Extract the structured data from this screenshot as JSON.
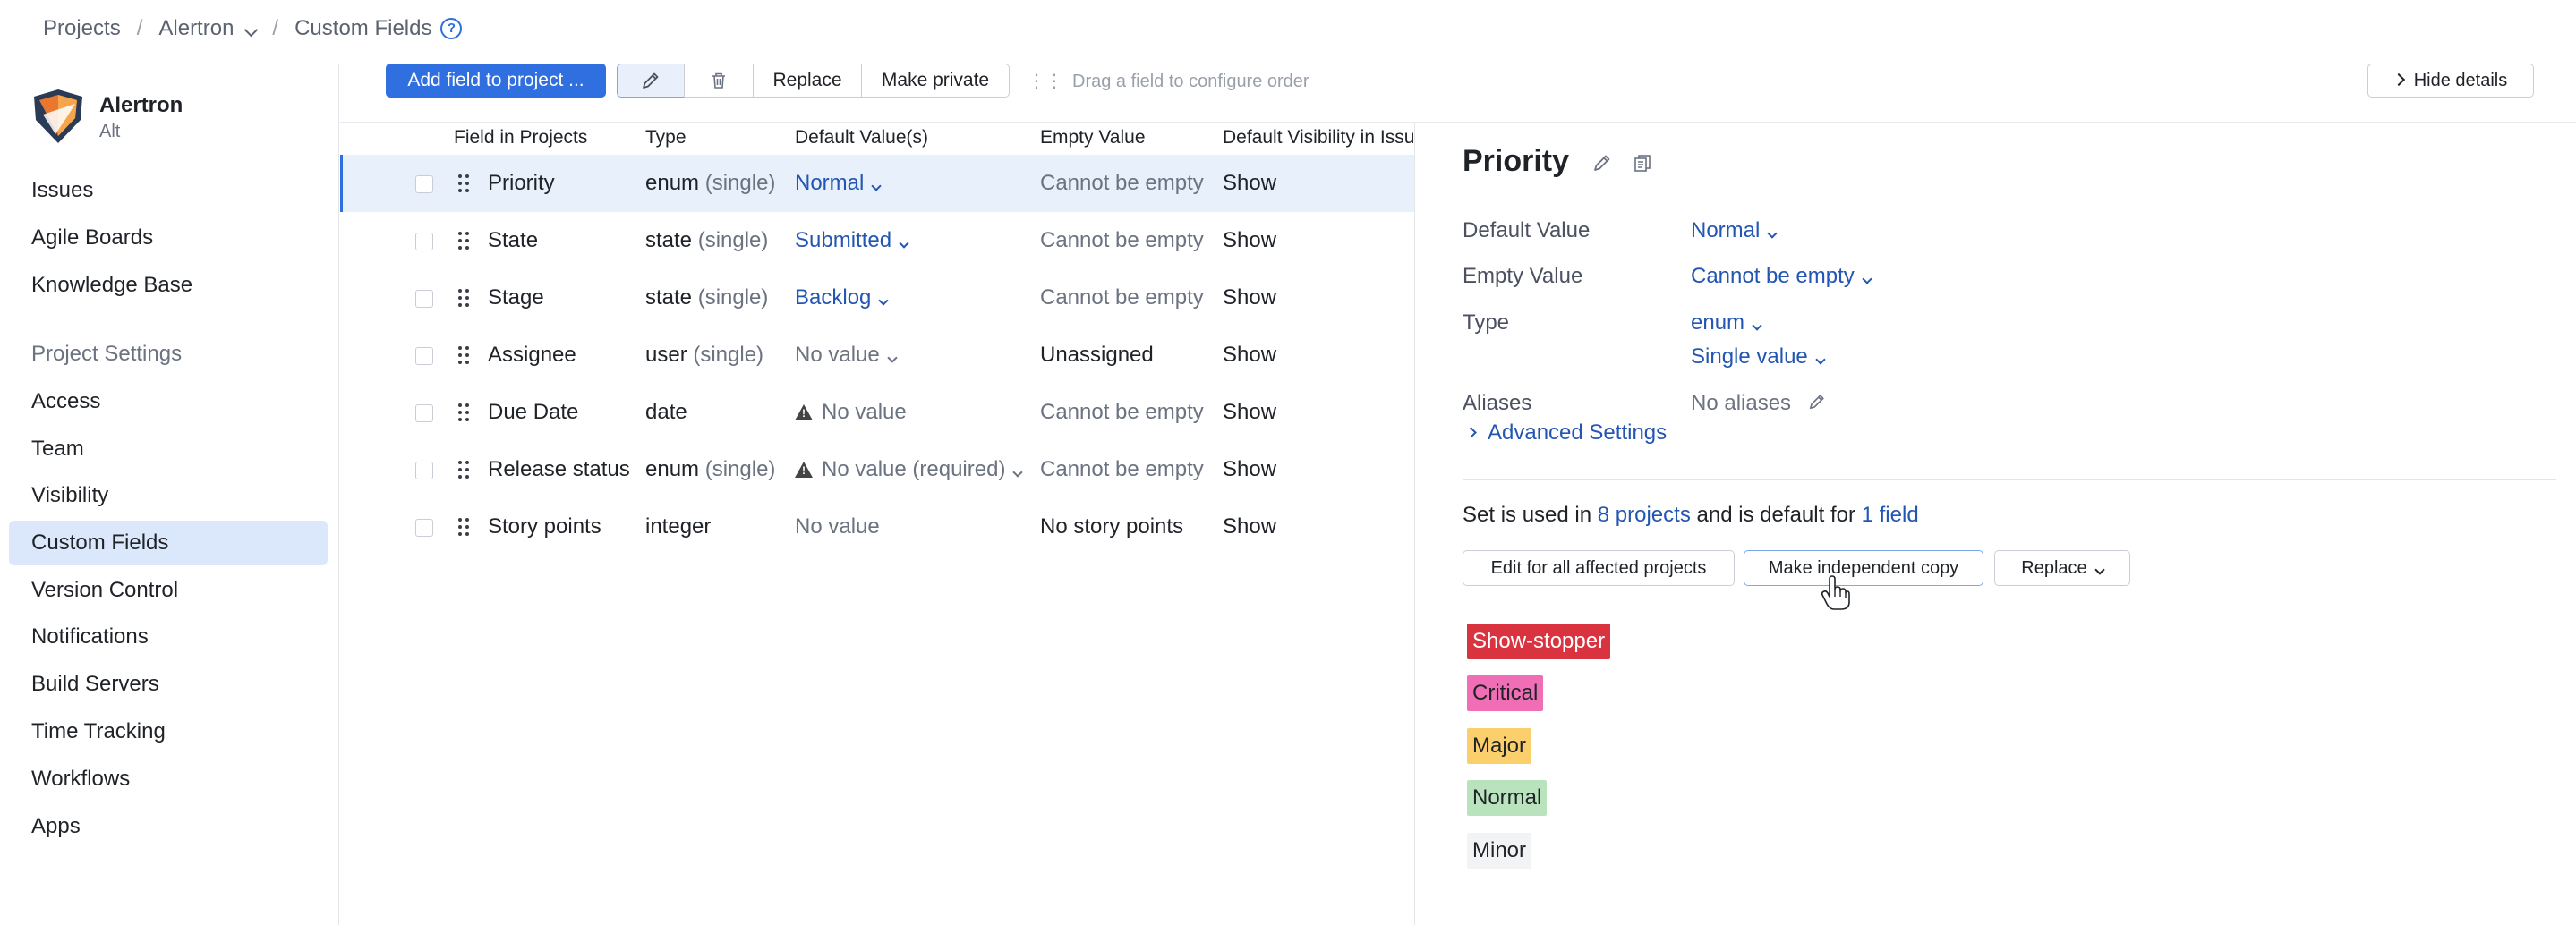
{
  "breadcrumb": {
    "projects": "Projects",
    "project": "Alertron",
    "current": "Custom Fields",
    "help_icon": "?"
  },
  "sidebar": {
    "project_name": "Alertron",
    "project_key": "Alt",
    "items_top": [
      "Issues",
      "Agile Boards",
      "Knowledge Base"
    ],
    "section_title": "Project Settings",
    "items_settings": [
      "Access",
      "Team",
      "Visibility",
      "Custom Fields",
      "Version Control",
      "Notifications",
      "Build Servers",
      "Time Tracking",
      "Workflows",
      "Apps"
    ],
    "active_item": "Custom Fields"
  },
  "toolbar": {
    "add_field": "Add field to project ...",
    "replace": "Replace",
    "make_private": "Make private",
    "drag_hint": "Drag a field to configure order",
    "hide_details": "Hide details"
  },
  "table": {
    "headers": [
      "Field in Projects",
      "Type",
      "Default Value(s)",
      "Empty Value",
      "Default Visibility in Issue"
    ],
    "rows": [
      {
        "name": "Priority",
        "type": "enum",
        "qualifier": "(single)",
        "default": "Normal",
        "empty": "Cannot be empty",
        "visibility": "Show"
      },
      {
        "name": "State",
        "type": "state",
        "qualifier": "(single)",
        "default": "Submitted",
        "empty": "Cannot be empty",
        "visibility": "Show"
      },
      {
        "name": "Stage",
        "type": "state",
        "qualifier": "(single)",
        "default": "Backlog",
        "empty": "Cannot be empty",
        "visibility": "Show"
      },
      {
        "name": "Assignee",
        "type": "user",
        "qualifier": "(single)",
        "default": "No value",
        "empty": "Unassigned",
        "visibility": "Show"
      },
      {
        "name": "Due Date",
        "type": "date",
        "qualifier": "",
        "default": "No value",
        "empty": "Cannot be empty",
        "visibility": "Show"
      },
      {
        "name": "Release status",
        "type": "enum",
        "qualifier": "(single)",
        "default": "No value (required)",
        "empty": "Cannot be empty",
        "visibility": "Show"
      },
      {
        "name": "Story points",
        "type": "integer",
        "qualifier": "",
        "default": "No value",
        "empty": "No story points",
        "visibility": "Show"
      }
    ]
  },
  "details": {
    "title": "Priority",
    "default_value_label": "Default Value",
    "default_value": "Normal",
    "empty_value_label": "Empty Value",
    "empty_value": "Cannot be empty",
    "type_label": "Type",
    "type_value": "enum",
    "cardinality": "Single value",
    "aliases_label": "Aliases",
    "aliases_value": "No aliases",
    "advanced_settings": "Advanced Settings",
    "used_prefix": "Set is used in",
    "used_projects": "8 projects",
    "used_middle": "and is default for",
    "used_fields": "1 field",
    "edit_all": "Edit for all affected projects",
    "make_copy": "Make independent copy",
    "replace": "Replace",
    "values": [
      {
        "label": "Show-stopper",
        "bg": "#d9333f",
        "fg": "#ffffff"
      },
      {
        "label": "Critical",
        "bg": "#f06eb5",
        "fg": "#1f2328"
      },
      {
        "label": "Major",
        "bg": "#fccf6d",
        "fg": "#1f2328"
      },
      {
        "label": "Normal",
        "bg": "#b9e3bd",
        "fg": "#1f2328"
      },
      {
        "label": "Minor",
        "bg": "#f2f3f5",
        "fg": "#1f2328"
      }
    ]
  },
  "colors": {
    "accent": "#2f6fe0",
    "link": "#2356b3",
    "active_nav": "#dbe7fb"
  }
}
